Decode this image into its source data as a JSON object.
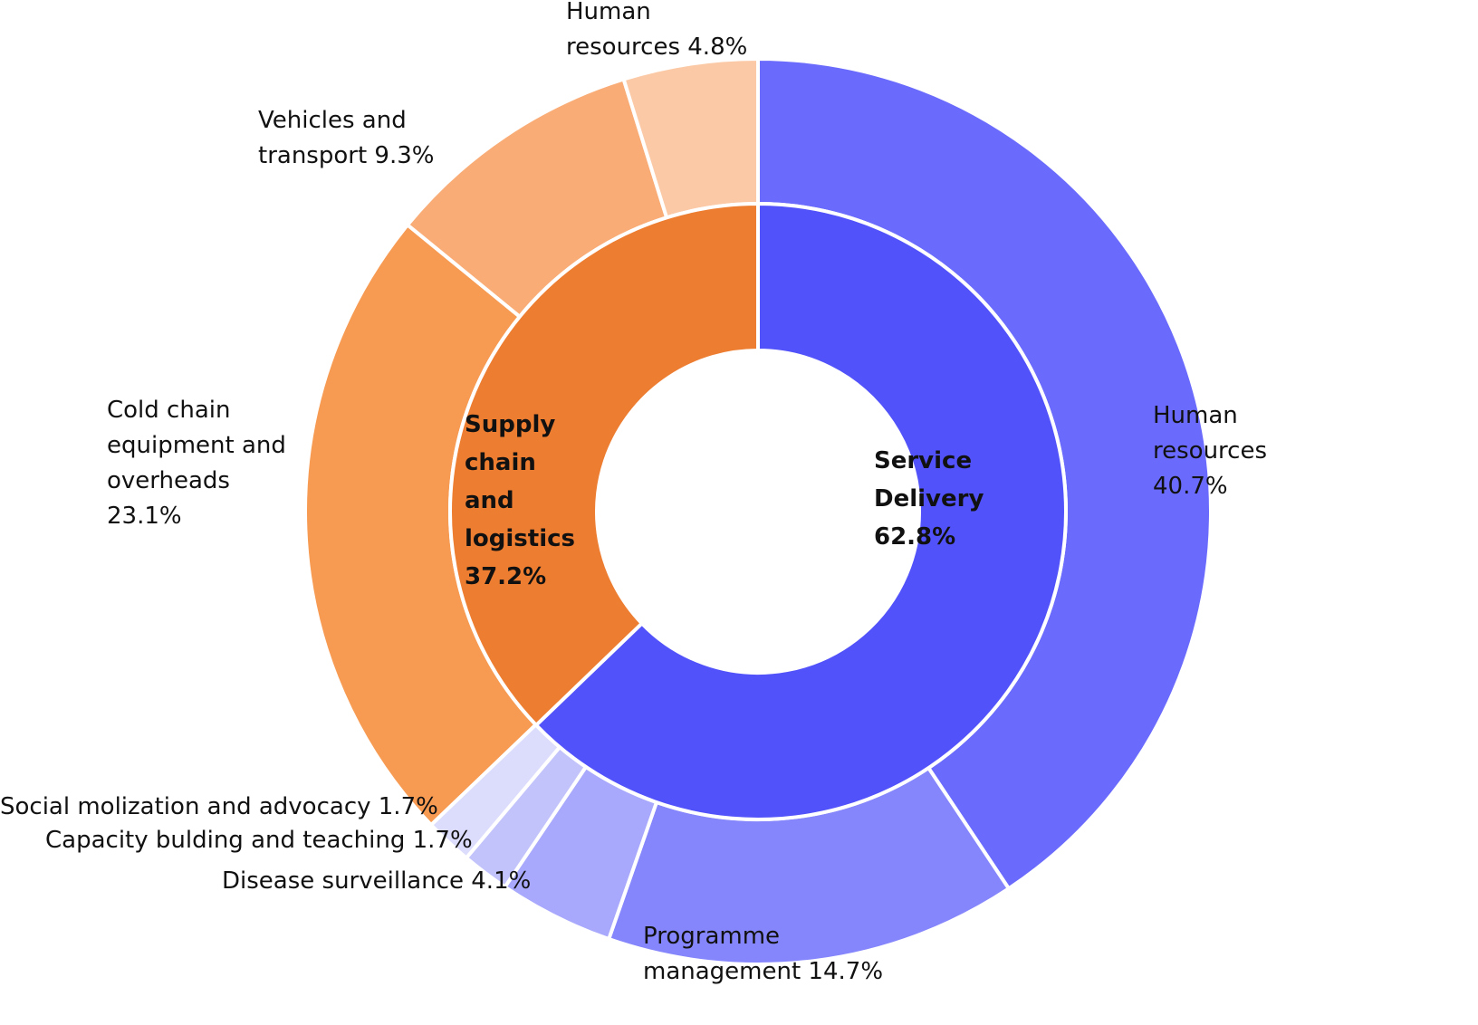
{
  "chart_data": {
    "type": "pie",
    "variant": "nested-donut",
    "inner_ring": [
      {
        "label_lines": [
          "Service",
          "Delivery",
          "62.8%"
        ],
        "value": 62.8,
        "color": "#5252fa"
      },
      {
        "label_lines": [
          "Supply",
          "chain",
          "and",
          "logistics",
          "37.2%"
        ],
        "value": 37.2,
        "color": "#ed7d31"
      }
    ],
    "outer_ring": [
      {
        "label_lines": [
          "Human",
          "resources",
          "40.7%"
        ],
        "value": 40.7,
        "color": "#6a6afc",
        "group": "Service Delivery"
      },
      {
        "label_lines": [
          "Programme",
          "management 14.7%"
        ],
        "value": 14.7,
        "color": "#8585fc",
        "group": "Service Delivery"
      },
      {
        "label_lines": [
          "Disease surveillance 4.1%"
        ],
        "value": 4.1,
        "color": "#a8a8fc",
        "group": "Service Delivery"
      },
      {
        "label_lines": [
          "Capacity bulding and teaching 1.7%"
        ],
        "value": 1.7,
        "color": "#c3c3fc",
        "group": "Service Delivery"
      },
      {
        "label_lines": [
          "Social molization and advocacy 1.7%"
        ],
        "value": 1.7,
        "color": "#dcdcfc",
        "group": "Service Delivery"
      },
      {
        "label_lines": [
          "Cold chain",
          "equipment and",
          "overheads",
          "23.1%"
        ],
        "value": 23.1,
        "color": "#f79a52",
        "group": "Supply chain and logistics"
      },
      {
        "label_lines": [
          "Vehicles and",
          "transport 9.3%"
        ],
        "value": 9.3,
        "color": "#f9ac76",
        "group": "Supply chain and logistics"
      },
      {
        "label_lines": [
          "Human",
          "resources 4.8%"
        ],
        "value": 4.8,
        "color": "#fbc9a5",
        "group": "Supply chain and logistics"
      }
    ],
    "start_angle": "12 o'clock, clockwise"
  }
}
